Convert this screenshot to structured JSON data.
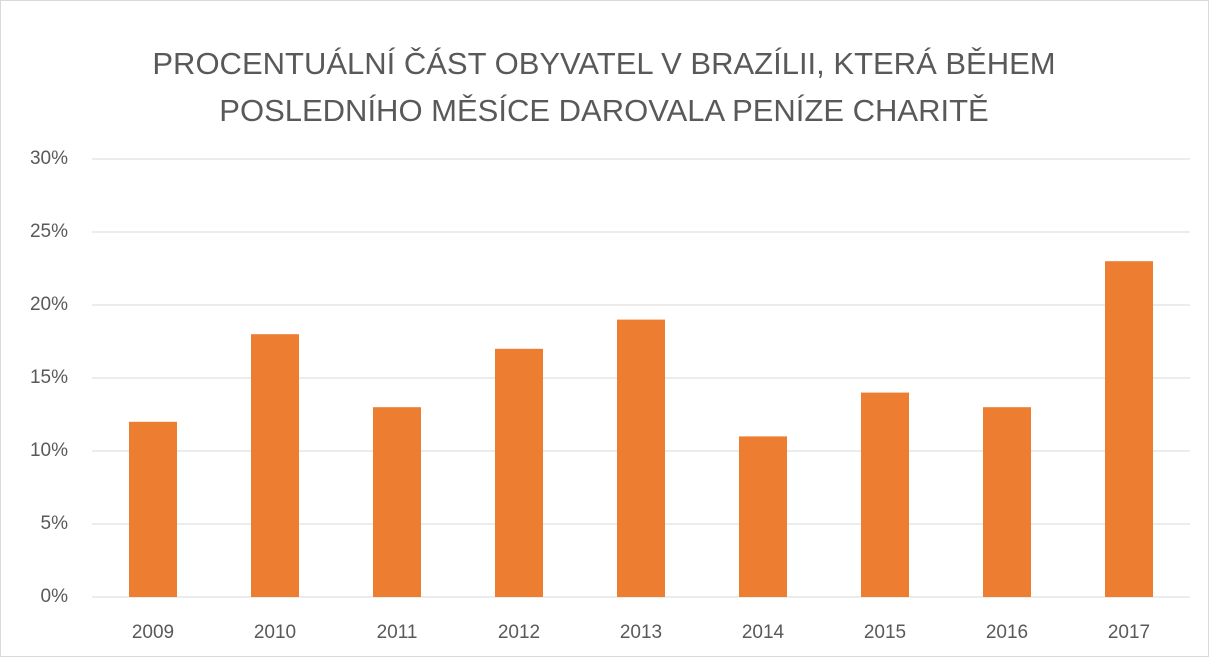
{
  "chart_data": {
    "type": "bar",
    "title": "PROCENTUÁLNÍ ČÁST OBYVATEL V BRAZÍLII, KTERÁ BĚHEM POSLEDNÍHO MĚSÍCE DAROVALA PENÍZE CHARITĚ",
    "categories": [
      "2009",
      "2010",
      "2011",
      "2012",
      "2013",
      "2014",
      "2015",
      "2016",
      "2017"
    ],
    "values": [
      12,
      18,
      13,
      17,
      19,
      11,
      14,
      13,
      23
    ],
    "color": "#ed7d31",
    "ylim": [
      0,
      30
    ],
    "yticks": [
      {
        "value": 0,
        "label": "0%"
      },
      {
        "value": 5,
        "label": "5%"
      },
      {
        "value": 10,
        "label": "10%"
      },
      {
        "value": 15,
        "label": "15%"
      },
      {
        "value": 20,
        "label": "20%"
      },
      {
        "value": 25,
        "label": "25%"
      },
      {
        "value": 30,
        "label": "30%"
      }
    ],
    "grid": true
  }
}
